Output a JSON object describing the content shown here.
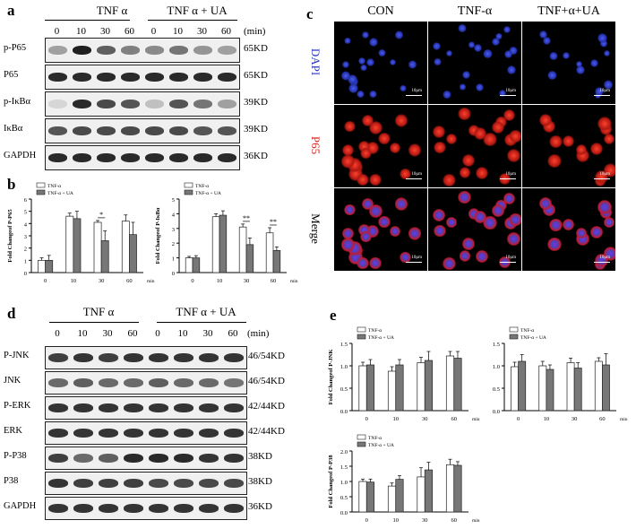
{
  "panel_a": {
    "label": "a",
    "group1": "TNF α",
    "group2": "TNF α + UA",
    "times": [
      "0",
      "10",
      "30",
      "60",
      "0",
      "10",
      "30",
      "60"
    ],
    "unit": "(min)",
    "rows": [
      {
        "name": "p-P65",
        "kd": "65KD",
        "strength": [
          0.35,
          0.95,
          0.65,
          0.5,
          0.45,
          0.55,
          0.4,
          0.35
        ]
      },
      {
        "name": "P65",
        "kd": "65KD",
        "strength": [
          0.9,
          0.9,
          0.9,
          0.9,
          0.9,
          0.9,
          0.9,
          0.9
        ]
      },
      {
        "name": "p-IκBα",
        "kd": "39KD",
        "strength": [
          0.1,
          0.9,
          0.75,
          0.7,
          0.2,
          0.7,
          0.55,
          0.35
        ]
      },
      {
        "name": "IκBα",
        "kd": "39KD",
        "strength": [
          0.7,
          0.75,
          0.75,
          0.75,
          0.75,
          0.75,
          0.7,
          0.7
        ]
      },
      {
        "name": "GAPDH",
        "kd": "36KD",
        "strength": [
          0.9,
          0.9,
          0.9,
          0.9,
          0.9,
          0.9,
          0.9,
          0.9
        ]
      }
    ]
  },
  "panel_b": {
    "label": "b",
    "legend": [
      "TNF-α",
      "TNF-α + UA"
    ],
    "charts": [
      {
        "ylabel": "Fold Changeof P-P65",
        "ymax": 6,
        "yticks": [
          0,
          1,
          2,
          3,
          4,
          5,
          6
        ],
        "categories": [
          "0",
          "10",
          "30",
          "60"
        ],
        "xunit": "min",
        "series": [
          {
            "values": [
              1.0,
              4.6,
              4.1,
              4.2
            ],
            "err": [
              0.2,
              0.25,
              0.15,
              0.5
            ]
          },
          {
            "values": [
              1.0,
              4.4,
              2.6,
              3.1
            ],
            "err": [
              0.4,
              0.6,
              0.8,
              1.0
            ]
          }
        ],
        "sig": [
          {
            "index": 2,
            "mark": "*"
          }
        ]
      },
      {
        "ylabel": "Fold Changeof P-IκBα",
        "ymax": 5,
        "yticks": [
          0,
          1,
          2,
          3,
          4,
          5
        ],
        "categories": [
          "0",
          "10",
          "30",
          "60"
        ],
        "xunit": "min",
        "series": [
          {
            "values": [
              1.0,
              3.8,
              3.1,
              2.7
            ],
            "err": [
              0.1,
              0.2,
              0.2,
              0.35
            ]
          },
          {
            "values": [
              1.0,
              3.9,
              1.9,
              1.5
            ],
            "err": [
              0.15,
              0.3,
              0.45,
              0.25
            ]
          }
        ],
        "sig": [
          {
            "index": 2,
            "mark": "**"
          },
          {
            "index": 3,
            "mark": "**"
          }
        ]
      }
    ]
  },
  "panel_c": {
    "label": "c",
    "columns": [
      "CON",
      "TNF-α",
      "TNF+α+UA"
    ],
    "rows": [
      {
        "name": "DAPI",
        "color": "#2a35c8"
      },
      {
        "name": "P65",
        "color": "#e0201a"
      },
      {
        "name": "Merge",
        "color": "#000000"
      }
    ],
    "scalebar": "10μm"
  },
  "panel_d": {
    "label": "d",
    "group1": "TNF α",
    "group2": "TNF α + UA",
    "times": [
      "0",
      "10",
      "30",
      "60",
      "0",
      "10",
      "30",
      "60"
    ],
    "unit": "(min)",
    "rows": [
      {
        "name": "P-JNK",
        "kd": "46/54KD",
        "strength": [
          0.8,
          0.85,
          0.8,
          0.85,
          0.85,
          0.85,
          0.85,
          0.85
        ]
      },
      {
        "name": "JNK",
        "kd": "46/54KD",
        "strength": [
          0.6,
          0.65,
          0.6,
          0.6,
          0.65,
          0.6,
          0.6,
          0.55
        ]
      },
      {
        "name": "P-ERK",
        "kd": "42/44KD",
        "strength": [
          0.85,
          0.85,
          0.85,
          0.85,
          0.85,
          0.85,
          0.85,
          0.85
        ]
      },
      {
        "name": "ERK",
        "kd": "42/44KD",
        "strength": [
          0.85,
          0.85,
          0.85,
          0.85,
          0.85,
          0.85,
          0.85,
          0.85
        ]
      },
      {
        "name": "P-P38",
        "kd": "38KD",
        "strength": [
          0.8,
          0.6,
          0.65,
          0.9,
          0.9,
          0.9,
          0.85,
          0.85
        ]
      },
      {
        "name": "P38",
        "kd": "38KD",
        "strength": [
          0.85,
          0.8,
          0.8,
          0.8,
          0.75,
          0.75,
          0.75,
          0.75
        ]
      },
      {
        "name": "GAPDH",
        "kd": "36KD",
        "strength": [
          0.85,
          0.85,
          0.85,
          0.85,
          0.85,
          0.85,
          0.85,
          0.85
        ]
      }
    ]
  },
  "panel_e": {
    "label": "e",
    "legend": [
      "TNF-α",
      "TNF-α + UA"
    ],
    "charts": [
      {
        "ylabel": "Fold Changeof P-JNK",
        "ymax": 1.5,
        "yticks": [
          "0.0",
          "0.5",
          "1.0",
          "1.5"
        ],
        "categories": [
          "0",
          "10",
          "30",
          "60"
        ],
        "xunit": "min",
        "series": [
          {
            "values": [
              1.0,
              0.88,
              1.07,
              1.22
            ],
            "err": [
              0.08,
              0.1,
              0.12,
              0.1
            ]
          },
          {
            "values": [
              1.02,
              1.02,
              1.12,
              1.17
            ],
            "err": [
              0.12,
              0.12,
              0.2,
              0.15
            ]
          }
        ]
      },
      {
        "ylabel": "",
        "ymax": 1.5,
        "yticks": [
          "0.0",
          "0.5",
          "1.0",
          "1.5"
        ],
        "categories": [
          "0",
          "10",
          "30",
          "60"
        ],
        "xunit": "min",
        "series": [
          {
            "values": [
              0.98,
              1.0,
              1.07,
              1.1
            ],
            "err": [
              0.1,
              0.1,
              0.1,
              0.08
            ]
          },
          {
            "values": [
              1.1,
              0.92,
              0.95,
              1.02
            ],
            "err": [
              0.15,
              0.1,
              0.12,
              0.25
            ]
          }
        ]
      },
      {
        "ylabel": "Fold Changeof P-P38",
        "ymax": 2.0,
        "yticks": [
          "0.0",
          "0.5",
          "1.0",
          "1.5",
          "2.0"
        ],
        "categories": [
          "0",
          "10",
          "30",
          "60"
        ],
        "xunit": "min",
        "series": [
          {
            "values": [
              1.0,
              0.85,
              1.15,
              1.55
            ],
            "err": [
              0.08,
              0.1,
              0.3,
              0.18
            ]
          },
          {
            "values": [
              0.98,
              1.07,
              1.38,
              1.53
            ],
            "err": [
              0.1,
              0.12,
              0.25,
              0.12
            ]
          }
        ]
      }
    ]
  }
}
